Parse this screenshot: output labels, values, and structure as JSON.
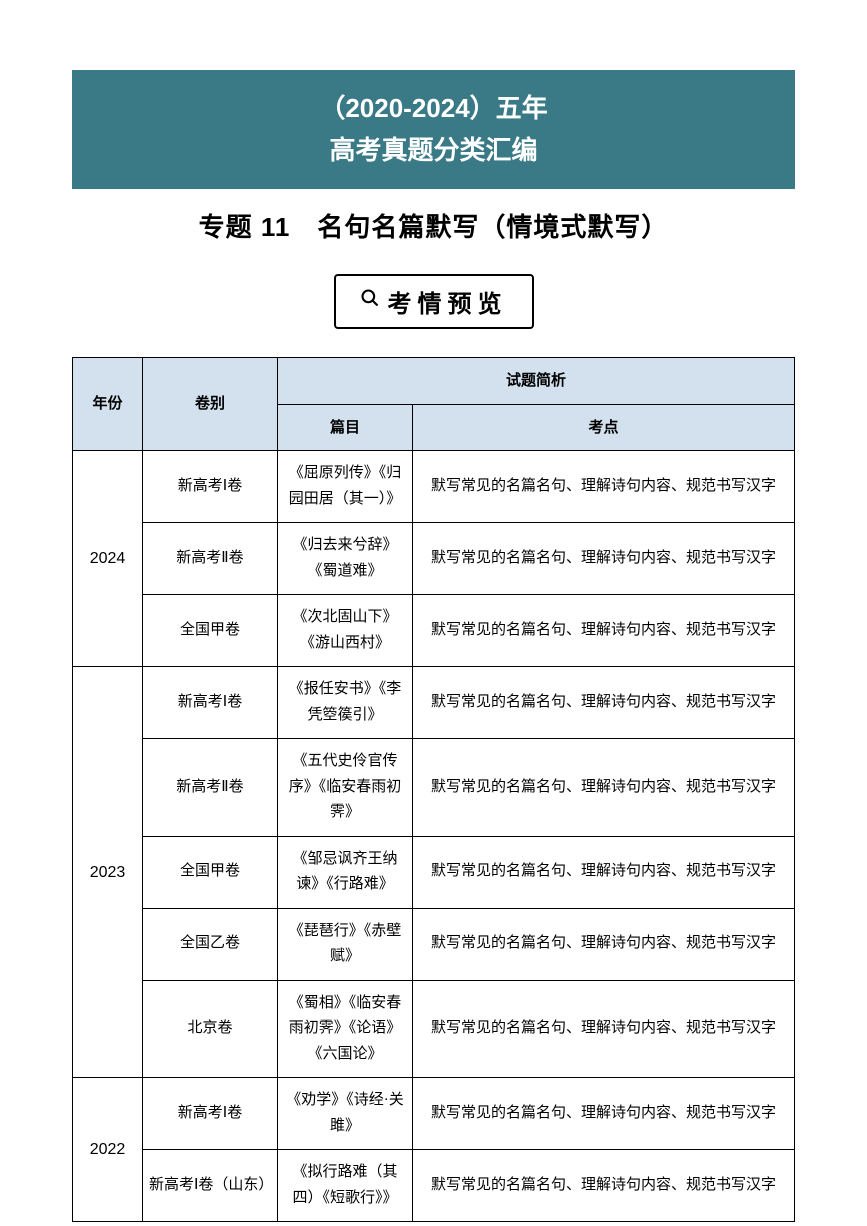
{
  "banner": {
    "line1": "（2020-2024）五年",
    "line2": "高考真题分类汇编",
    "bg_color": "#3a7a87",
    "text_color": "#ffffff"
  },
  "topic_title": "专题 11　名句名篇默写（情境式默写）",
  "section_label": "考情预览",
  "table": {
    "header_bg": "#d3e1ee",
    "headers": {
      "year": "年份",
      "paper": "卷别",
      "analysis": "试题简析",
      "article": "篇目",
      "point": "考点"
    },
    "groups": [
      {
        "year": "2024",
        "rows": [
          {
            "paper": "新高考Ⅰ卷",
            "article": "《屈原列传》《归园田居（其一）》",
            "point": "默写常见的名篇名句、理解诗句内容、规范书写汉字"
          },
          {
            "paper": "新高考Ⅱ卷",
            "article": "《归去来兮辞》《蜀道难》",
            "point": "默写常见的名篇名句、理解诗句内容、规范书写汉字"
          },
          {
            "paper": "全国甲卷",
            "article": "《次北固山下》《游山西村》",
            "point": "默写常见的名篇名句、理解诗句内容、规范书写汉字"
          }
        ]
      },
      {
        "year": "2023",
        "rows": [
          {
            "paper": "新高考Ⅰ卷",
            "article": "《报任安书》《李凭箜篌引》",
            "point": "默写常见的名篇名句、理解诗句内容、规范书写汉字"
          },
          {
            "paper": "新高考Ⅱ卷",
            "article": "《五代史伶官传序》《临安春雨初霁》",
            "point": "默写常见的名篇名句、理解诗句内容、规范书写汉字"
          },
          {
            "paper": "全国甲卷",
            "article": "《邹忌讽齐王纳谏》《行路难》",
            "point": "默写常见的名篇名句、理解诗句内容、规范书写汉字"
          },
          {
            "paper": "全国乙卷",
            "article": "《琵琶行》《赤壁赋》",
            "point": "默写常见的名篇名句、理解诗句内容、规范书写汉字"
          },
          {
            "paper": "北京卷",
            "article": "《蜀相》《临安春雨初霁》《论语》《六国论》",
            "point": "默写常见的名篇名句、理解诗句内容、规范书写汉字"
          }
        ]
      },
      {
        "year": "2022",
        "rows": [
          {
            "paper": "新高考Ⅰ卷",
            "article": "《劝学》《诗经·关雎》",
            "point": "默写常见的名篇名句、理解诗句内容、规范书写汉字"
          },
          {
            "paper": "新高考Ⅰ卷（山东）",
            "article": "《拟行路难（其四）《短歌行》》",
            "point": "默写常见的名篇名句、理解诗句内容、规范书写汉字"
          }
        ]
      }
    ]
  }
}
